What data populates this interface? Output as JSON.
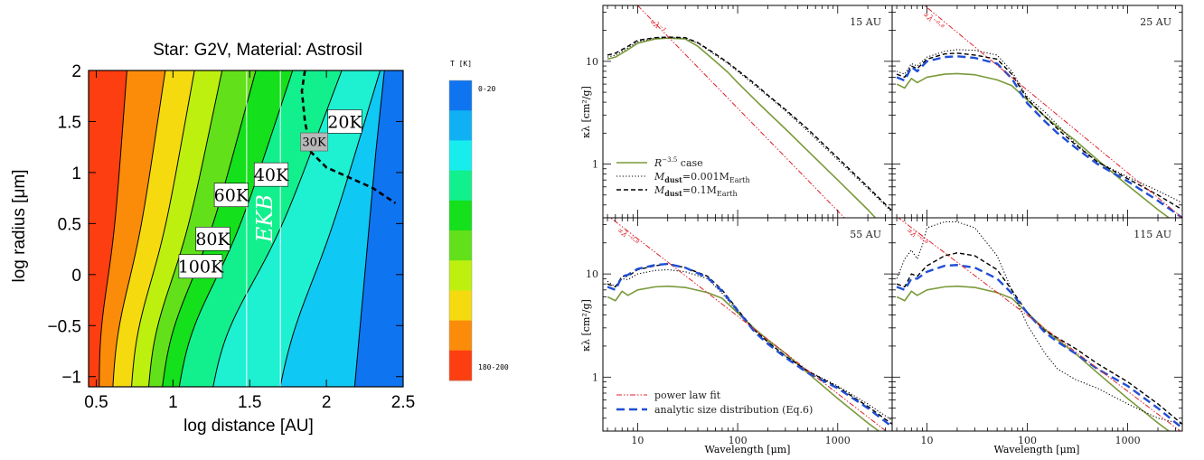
{
  "chart_data": [
    {
      "type": "contour",
      "title": "Star: G2V, Material: Astrosil",
      "xlabel": "log distance [AU]",
      "ylabel": "log radius [μm]",
      "xlim": [
        0.45,
        2.5
      ],
      "ylim": [
        -1.1,
        2.0
      ],
      "xticks": [
        "0.5",
        "1",
        "1.5",
        "2",
        "2.5"
      ],
      "yticks": [
        "2",
        "1.5",
        "1",
        "0.5",
        "0",
        "-0.5",
        "-1"
      ],
      "contour_labels": [
        {
          "text": "20K",
          "x": 2.12,
          "y": 1.5
        },
        {
          "text": "30K",
          "x": 1.92,
          "y": 1.3
        },
        {
          "text": "40K",
          "x": 1.64,
          "y": 0.98
        },
        {
          "text": "60K",
          "x": 1.38,
          "y": 0.78
        },
        {
          "text": "80K",
          "x": 1.26,
          "y": 0.35
        },
        {
          "text": "100K",
          "x": 1.18,
          "y": 0.08
        }
      ],
      "region_label": "EKB",
      "ekb_x": [
        1.48,
        1.7
      ],
      "colorbar": {
        "title": "T [K]",
        "top_label": "0-20",
        "bottom_label": "180-200",
        "colors": [
          "#0f74f0",
          "#10b0f4",
          "#18eded",
          "#12f08e",
          "#14e01c",
          "#62e01a",
          "#bdf00f",
          "#f5da10",
          "#fb8c0a",
          "#fd3e10"
        ]
      },
      "band_colors": [
        "#fd3e10",
        "#fb8c0a",
        "#f5da10",
        "#bdf00f",
        "#62e01a",
        "#14e01c",
        "#12f08e",
        "#1ef0d2",
        "#10c8f4",
        "#0f74f0"
      ]
    },
    {
      "type": "line",
      "xlabel": "Wavelength [μm]",
      "ylabel": "κλ [cm²/g]",
      "xscale": "log",
      "yscale": "log",
      "xlim": [
        4.5,
        3500
      ],
      "ylim": [
        0.3,
        35
      ],
      "xticks": [
        "10",
        "100",
        "1000"
      ],
      "yticks": [
        "10",
        "1"
      ],
      "panels": [
        {
          "label": "15 AU",
          "powerlaw_label": "∝λ⁻¹",
          "series": [
            {
              "style": "solid-olive",
              "x": [
                5,
                6,
                8,
                10,
                15,
                20,
                30,
                40,
                60,
                80,
                100,
                150,
                200,
                300,
                500,
                1000,
                2000,
                3500
              ],
              "y": [
                10.5,
                11,
                13,
                15,
                16.5,
                16.8,
                16.5,
                14,
                10,
                7.8,
                6.2,
                4.2,
                3.2,
                2.2,
                1.35,
                0.7,
                0.36,
                0.2
              ]
            },
            {
              "style": "dotted-black",
              "x": [
                5,
                6,
                8,
                10,
                15,
                20,
                30,
                40,
                60,
                80,
                100,
                150,
                200,
                300,
                500,
                1000,
                2000,
                3500
              ],
              "y": [
                11,
                11.5,
                13.5,
                15.5,
                16.8,
                17,
                16.8,
                15,
                11.5,
                9.5,
                8,
                5.8,
                4.6,
                3.3,
                2.1,
                1.1,
                0.58,
                0.34
              ]
            },
            {
              "style": "dashed-black",
              "x": [
                5,
                6,
                8,
                10,
                15,
                20,
                30,
                40,
                60,
                80,
                100,
                150,
                200,
                300,
                500,
                1000,
                2000,
                3500
              ],
              "y": [
                11.5,
                12,
                14,
                16,
                17,
                17.2,
                17,
                15.2,
                11.8,
                9.7,
                8.2,
                6,
                4.7,
                3.4,
                2.2,
                1.15,
                0.6,
                0.35
              ]
            },
            {
              "style": "powerlaw",
              "x": [
                10,
                3500
              ],
              "y": [
                35,
                0.1
              ]
            }
          ]
        },
        {
          "label": "25 AU",
          "powerlaw_label": "∝λ⁻⁰·⁸",
          "series": [
            {
              "style": "solid-olive",
              "x": [
                5,
                6,
                7,
                8,
                10,
                15,
                20,
                30,
                50,
                70,
                100,
                150,
                200,
                300,
                500,
                1000,
                2000,
                3500
              ],
              "y": [
                6,
                5.5,
                6.8,
                6.2,
                7,
                7.5,
                7.6,
                7.4,
                6.6,
                5.8,
                4.2,
                2.9,
                2.3,
                1.7,
                1.1,
                0.62,
                0.36,
                0.24
              ]
            },
            {
              "style": "dotted-black",
              "x": [
                5,
                6,
                7,
                8,
                10,
                15,
                20,
                30,
                50,
                70,
                100,
                150,
                200,
                300,
                500,
                1000,
                2000,
                3500
              ],
              "y": [
                8,
                7.5,
                9.5,
                9,
                11,
                12.5,
                13,
                12.8,
                11.5,
                8,
                4.5,
                3.2,
                2.4,
                1.6,
                1.05,
                0.75,
                0.55,
                0.42
              ]
            },
            {
              "style": "dashed-black",
              "x": [
                5,
                6,
                7,
                8,
                10,
                15,
                20,
                30,
                50,
                70,
                100,
                150,
                200,
                300,
                500,
                1000,
                2000,
                3500
              ],
              "y": [
                7.5,
                7,
                9,
                8.5,
                10.5,
                11.8,
                12,
                11.5,
                10.5,
                7.5,
                4.3,
                2.9,
                2.2,
                1.55,
                1.05,
                0.72,
                0.5,
                0.36
              ]
            },
            {
              "style": "dashed-blue",
              "x": [
                5,
                6,
                7,
                8,
                10,
                15,
                20,
                30,
                50,
                70,
                100,
                150,
                200,
                300,
                500,
                1000,
                2000,
                3500
              ],
              "y": [
                7,
                6.5,
                8.8,
                8,
                10,
                11,
                11.2,
                10.8,
                9.5,
                6.8,
                3.9,
                2.6,
                2,
                1.45,
                1,
                0.68,
                0.44,
                0.3
              ]
            },
            {
              "style": "powerlaw",
              "x": [
                8,
                3500
              ],
              "y": [
                40,
                0.3
              ]
            }
          ]
        },
        {
          "label": "55 AU",
          "powerlaw_label": "∝λ⁻⁰·⁸",
          "series": [
            {
              "style": "solid-olive",
              "x": [
                5,
                6,
                7,
                8,
                10,
                15,
                20,
                30,
                50,
                70,
                100,
                150,
                200,
                300,
                500,
                1000,
                2000,
                3500
              ],
              "y": [
                6,
                5.5,
                6.8,
                6.2,
                7,
                7.5,
                7.6,
                7.4,
                6.6,
                5.8,
                4.2,
                2.9,
                2.3,
                1.7,
                1.1,
                0.62,
                0.36,
                0.24
              ]
            },
            {
              "style": "dotted-black",
              "x": [
                5,
                6,
                7,
                8,
                10,
                15,
                20,
                30,
                50,
                70,
                100,
                150,
                200,
                300,
                500,
                1000,
                2000,
                3500
              ],
              "y": [
                8.5,
                7.5,
                9,
                8.8,
                10,
                10.8,
                11,
                10.5,
                9,
                6.5,
                4.3,
                2.8,
                2.2,
                1.6,
                1.15,
                0.82,
                0.55,
                0.38
              ]
            },
            {
              "style": "dashed-black",
              "x": [
                5,
                6,
                7,
                8,
                10,
                15,
                20,
                30,
                50,
                70,
                100,
                150,
                200,
                300,
                500,
                1000,
                2000,
                3500
              ],
              "y": [
                8,
                7.5,
                9.5,
                9.5,
                11,
                12,
                12.5,
                11.5,
                9.5,
                7,
                4.5,
                2.8,
                2.2,
                1.6,
                1.15,
                0.8,
                0.52,
                0.35
              ]
            },
            {
              "style": "dashed-blue",
              "x": [
                5,
                6,
                7,
                8,
                10,
                15,
                20,
                30,
                50,
                70,
                100,
                150,
                200,
                300,
                500,
                1000,
                2000,
                3500
              ],
              "y": [
                7.5,
                7,
                9.5,
                9.8,
                11.2,
                12.2,
                12.5,
                11.5,
                9.2,
                6.8,
                4.4,
                2.7,
                2.1,
                1.55,
                1.1,
                0.78,
                0.5,
                0.33
              ]
            },
            {
              "style": "powerlaw",
              "x": [
                4.5,
                3500
              ],
              "y": [
                40,
                0.27
              ]
            }
          ]
        },
        {
          "label": "115 AU",
          "powerlaw_label": "∝λ⁻⁰·⁸",
          "series": [
            {
              "style": "solid-olive",
              "x": [
                5,
                6,
                7,
                8,
                10,
                15,
                20,
                30,
                50,
                70,
                100,
                150,
                200,
                300,
                500,
                1000,
                2000,
                3500
              ],
              "y": [
                6,
                5.5,
                6.8,
                6.2,
                7,
                7.5,
                7.6,
                7.4,
                6.6,
                5.8,
                4.2,
                2.9,
                2.3,
                1.7,
                1.1,
                0.62,
                0.36,
                0.24
              ]
            },
            {
              "style": "dotted-black",
              "x": [
                5,
                6,
                7,
                8,
                9,
                10,
                15,
                20,
                30,
                50,
                70,
                100,
                150,
                200,
                300,
                500,
                1000,
                2000,
                3500
              ],
              "y": [
                9,
                14,
                17,
                14,
                19,
                28,
                32,
                32,
                28,
                15,
                7,
                3.2,
                1.7,
                1.2,
                0.95,
                0.78,
                0.55,
                0.4,
                0.35
              ]
            },
            {
              "style": "dashed-black",
              "x": [
                5,
                6,
                7,
                8,
                10,
                15,
                20,
                30,
                50,
                70,
                100,
                150,
                200,
                300,
                500,
                1000,
                2000,
                3500
              ],
              "y": [
                8,
                7.5,
                10,
                9.5,
                12,
                15,
                16,
                15,
                11,
                7,
                4.2,
                2.8,
                2.4,
                1.9,
                1.35,
                0.9,
                0.55,
                0.35
              ]
            },
            {
              "style": "dashed-blue",
              "x": [
                5,
                6,
                7,
                8,
                10,
                15,
                20,
                30,
                50,
                70,
                100,
                150,
                200,
                300,
                500,
                1000,
                2000,
                3500
              ],
              "y": [
                7.5,
                7,
                9,
                9,
                10.5,
                12,
                12.2,
                11.5,
                9,
                6.5,
                4.2,
                2.7,
                2.2,
                1.7,
                1.2,
                0.82,
                0.5,
                0.32
              ]
            },
            {
              "style": "powerlaw",
              "x": [
                5,
                3500
              ],
              "y": [
                36,
                0.29
              ]
            }
          ]
        }
      ],
      "legend_top": [
        {
          "style": "solid-olive",
          "label": "R",
          "sup": "−3.5",
          "suffix": " case"
        },
        {
          "style": "dotted-black",
          "label": "M",
          "sub": "dust",
          "suffix": "=0.001M",
          "sub2": "Earth"
        },
        {
          "style": "dashed-black",
          "label": "M",
          "sub": "dust",
          "suffix": "=0.1M",
          "sub2": "Earth"
        }
      ],
      "legend_bottom": [
        {
          "style": "powerlaw",
          "label": "power law fit"
        },
        {
          "style": "dashed-blue",
          "label": "analytic size distribution (Eq.6)"
        }
      ]
    }
  ]
}
